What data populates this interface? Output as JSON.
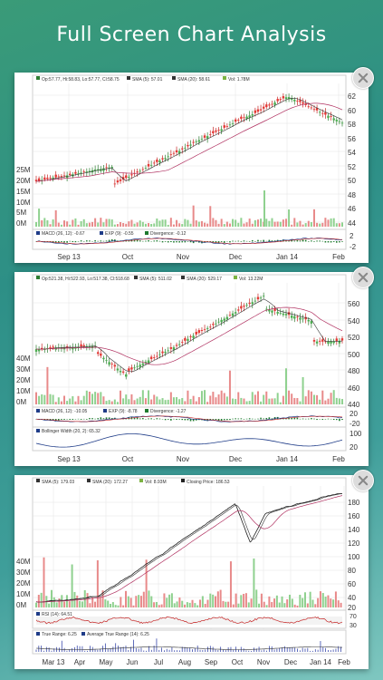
{
  "header": {
    "title": "Full Screen Chart Analysis"
  },
  "charts": [
    {
      "legend": [
        "Op:57.77, Hi:58.83, Lo:57.77, Cl:58.75",
        "SMA (5): 57.01",
        "SMA (20): 58.61",
        "Vol: 1.78M"
      ],
      "legend_colors": [
        "#2e7d32",
        "#333333",
        "#333333",
        "#7cb342"
      ],
      "price_ticks": [
        "62",
        "60",
        "58",
        "56",
        "54",
        "52",
        "50",
        "48",
        "46",
        "44"
      ],
      "volume_ticks": [
        "25M",
        "20M",
        "15M",
        "10M",
        "5M",
        "0M"
      ],
      "indicators": [
        {
          "label": "MACD (26, 12): -0.67",
          "color": "#1f3c88"
        },
        {
          "label": "EXP (9): -0.55",
          "color": "#1f3c88"
        },
        {
          "label": "Divergence: -0.12",
          "color": "#1f7a2f"
        }
      ],
      "indicator_ticks": [
        "2",
        "-2"
      ],
      "x_labels": [
        "Sep 13",
        "Oct",
        "Nov",
        "Dec",
        "Jan 14",
        "Feb"
      ]
    },
    {
      "legend": [
        "Op:521.38, Hi:522.93, Lo:517.38, Cl:518.68",
        "SMA (5): 511.02",
        "SMA (20): 529.17",
        "Vol: 13.22M"
      ],
      "legend_colors": [
        "#2e7d32",
        "#333333",
        "#333333",
        "#7cb342"
      ],
      "price_ticks": [
        "560",
        "540",
        "520",
        "500",
        "480",
        "460",
        "440"
      ],
      "volume_ticks": [
        "40M",
        "30M",
        "20M",
        "10M",
        "0M"
      ],
      "indicators": [
        {
          "label": "MACD (26, 12): -10.05",
          "color": "#1f3c88"
        },
        {
          "label": "EXP (9): -8.78",
          "color": "#1f3c88"
        },
        {
          "label": "Divergence: -1.27",
          "color": "#1f7a2f"
        }
      ],
      "indicator_ticks": [
        "20",
        "-20"
      ],
      "bollinger": {
        "label": "Bollinger Width (20, 2): 65.32",
        "ticks": [
          "100",
          "20"
        ]
      },
      "x_labels": [
        "Sep 13",
        "Oct",
        "Nov",
        "Dec",
        "Jan 14",
        "Feb"
      ]
    },
    {
      "legend": [
        "SMA (5): 179.03",
        "SMA (20): 172.27",
        "Vol: 8.93M",
        "Closing Price: 186.53"
      ],
      "legend_colors": [
        "#333333",
        "#333333",
        "#7cb342",
        "#222222"
      ],
      "price_ticks": [
        "180",
        "160",
        "140",
        "120",
        "100",
        "80",
        "60",
        "40",
        "20"
      ],
      "volume_ticks": [
        "40M",
        "30M",
        "20M",
        "10M",
        "0M"
      ],
      "rsi": {
        "label": "RSI (14): 64.51",
        "ticks": [
          "70",
          "30"
        ]
      },
      "atr": {
        "labels": [
          "True Range: 6.25",
          "Average True Range (14): 6.25"
        ]
      },
      "x_labels": [
        "Mar 13",
        "Apr",
        "May",
        "Jun",
        "Jul",
        "Aug",
        "Sep",
        "Oct",
        "Nov",
        "Dec",
        "Jan 14",
        "Feb"
      ]
    }
  ]
}
